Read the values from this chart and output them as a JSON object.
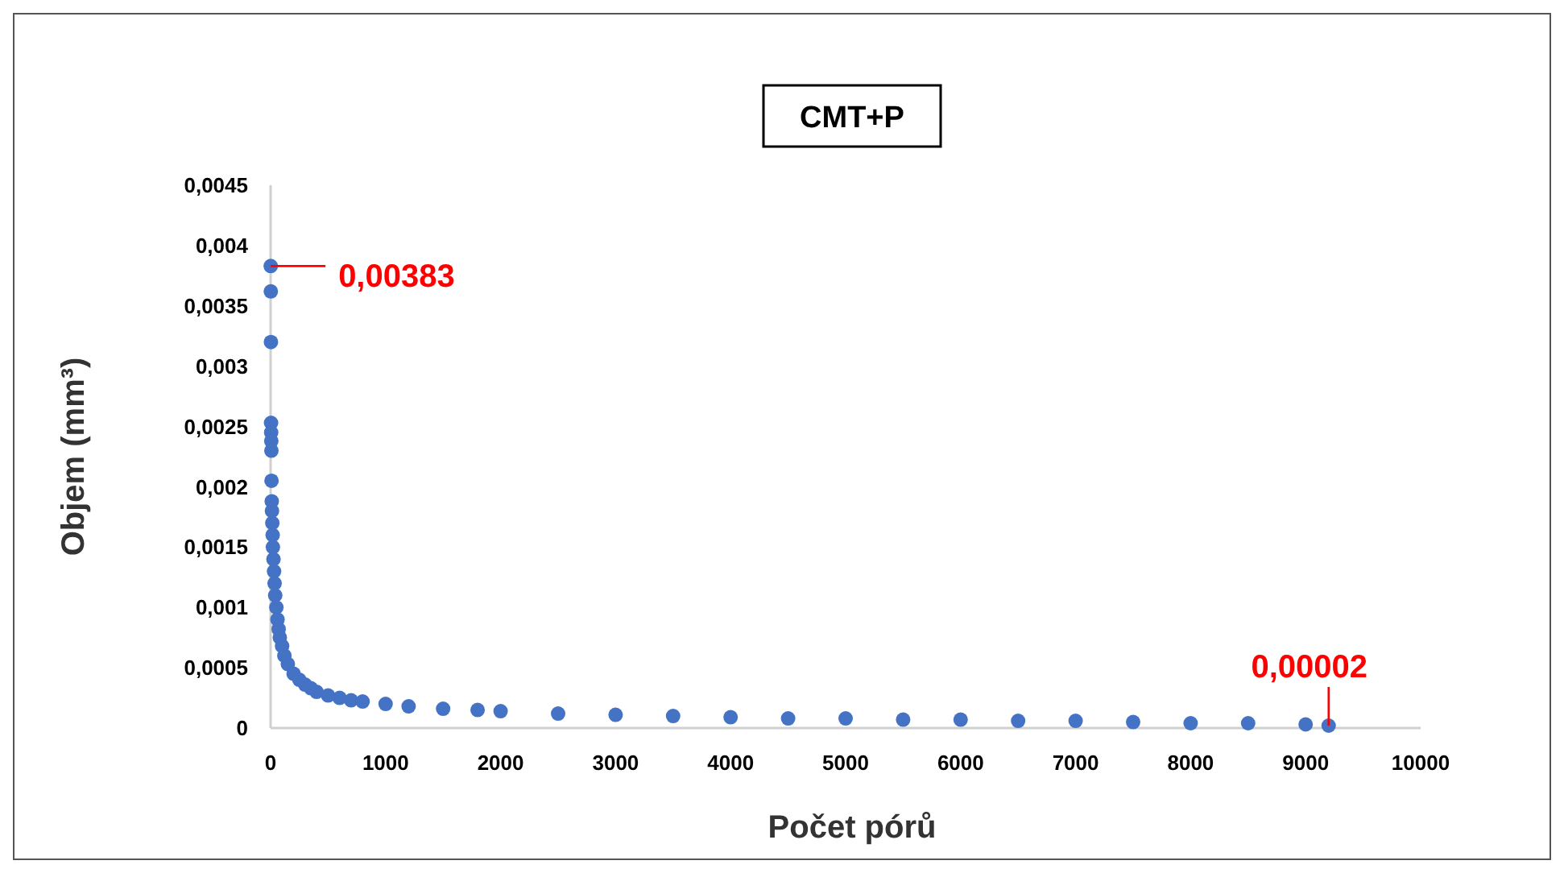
{
  "chart_data": {
    "type": "scatter",
    "title": "CMT+P",
    "xlabel": "Počet pórů",
    "ylabel": "Objem (mm³)",
    "x": [
      1,
      2,
      3,
      4,
      5,
      6,
      7,
      8,
      10,
      12,
      15,
      18,
      20,
      25,
      30,
      35,
      40,
      50,
      60,
      70,
      80,
      100,
      120,
      150,
      200,
      250,
      300,
      350,
      400,
      500,
      600,
      700,
      800,
      1000,
      1200,
      1500,
      1800,
      2000,
      2500,
      3000,
      3500,
      4000,
      4500,
      5000,
      5500,
      6000,
      6500,
      7000,
      7500,
      8000,
      8500,
      9000,
      9200
    ],
    "series": [
      {
        "color": "#4472c4",
        "values": [
          0.00383,
          0.00362,
          0.0032,
          0.00253,
          0.00245,
          0.00238,
          0.0023,
          0.00205,
          0.00188,
          0.0018,
          0.0017,
          0.0016,
          0.0015,
          0.0014,
          0.0013,
          0.0012,
          0.0011,
          0.001,
          0.0009,
          0.00082,
          0.00075,
          0.00068,
          0.0006,
          0.00053,
          0.00045,
          0.0004,
          0.00036,
          0.00033,
          0.0003,
          0.00027,
          0.00025,
          0.00023,
          0.00022,
          0.0002,
          0.00018,
          0.00016,
          0.00015,
          0.00014,
          0.00012,
          0.00011,
          0.0001,
          9e-05,
          8e-05,
          8e-05,
          7e-05,
          7e-05,
          6e-05,
          6e-05,
          5e-05,
          4e-05,
          4e-05,
          3e-05,
          2e-05
        ]
      }
    ],
    "xlim": [
      0,
      10000
    ],
    "xticks": [
      0,
      1000,
      2000,
      3000,
      4000,
      5000,
      6000,
      7000,
      8000,
      9000,
      10000
    ],
    "ylim": [
      0,
      0.0045
    ],
    "yticks": [
      0,
      {
        "value": 0.0005,
        "label": "0,0005"
      },
      {
        "value": 0.001,
        "label": "0,001"
      },
      {
        "value": 0.0015,
        "label": "0,0015"
      },
      {
        "value": 0.002,
        "label": "0,002"
      },
      {
        "value": 0.0025,
        "label": "0,0025"
      },
      {
        "value": 0.003,
        "label": "0,003"
      },
      {
        "value": 0.0035,
        "label": "0,0035"
      },
      {
        "value": 0.004,
        "label": "0,004"
      },
      {
        "value": 0.0045,
        "label": "0,0045"
      }
    ],
    "annotations": [
      {
        "text": "0,00383",
        "x": 1,
        "y": 0.00383
      },
      {
        "text": "0,00002",
        "x": 9200,
        "y": 2e-05
      }
    ],
    "grid": false,
    "marker": "circle"
  }
}
